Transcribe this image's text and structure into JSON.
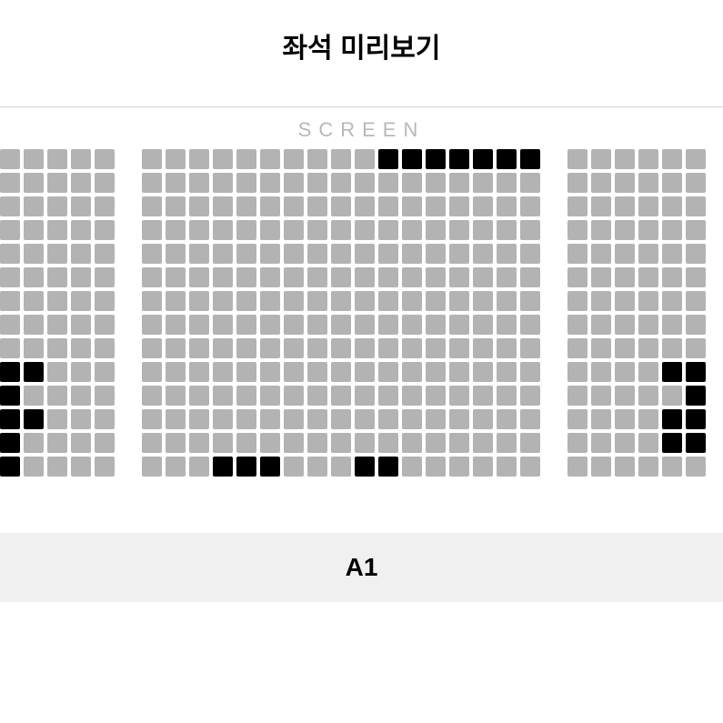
{
  "title": "좌석 미리보기",
  "screen_label": "SCREEN",
  "footer_label": "A1",
  "styling": {
    "seat_size": 22,
    "seat_gap": 4,
    "seat_radius": 2,
    "section_gap": 30,
    "colors": {
      "available": "#b3b3b3",
      "taken": "#000000",
      "background": "#ffffff",
      "divider": "#d5d5d5",
      "screen_text": "#b8b8b8",
      "footer_bg": "#f0f0f0",
      "text": "#000000"
    },
    "typography": {
      "title_size": 30,
      "title_weight": 700,
      "screen_size": 22,
      "screen_spacing": 8,
      "footer_size": 28,
      "footer_weight": 700
    }
  },
  "sections": [
    {
      "name": "left",
      "cols": 5,
      "rows": 14,
      "taken": [
        [
          9,
          0
        ],
        [
          9,
          1
        ],
        [
          10,
          0
        ],
        [
          11,
          0
        ],
        [
          11,
          1
        ],
        [
          12,
          0
        ],
        [
          13,
          0
        ]
      ]
    },
    {
      "name": "center",
      "cols": 17,
      "rows": 14,
      "taken": [
        [
          0,
          10
        ],
        [
          0,
          11
        ],
        [
          0,
          12
        ],
        [
          0,
          13
        ],
        [
          0,
          14
        ],
        [
          0,
          15
        ],
        [
          0,
          16
        ],
        [
          13,
          3
        ],
        [
          13,
          4
        ],
        [
          13,
          5
        ],
        [
          13,
          9
        ],
        [
          13,
          10
        ]
      ]
    },
    {
      "name": "right",
      "cols": 6,
      "rows": 14,
      "taken": [
        [
          9,
          4
        ],
        [
          9,
          5
        ],
        [
          10,
          5
        ],
        [
          11,
          4
        ],
        [
          11,
          5
        ],
        [
          12,
          4
        ],
        [
          12,
          5
        ]
      ]
    }
  ]
}
